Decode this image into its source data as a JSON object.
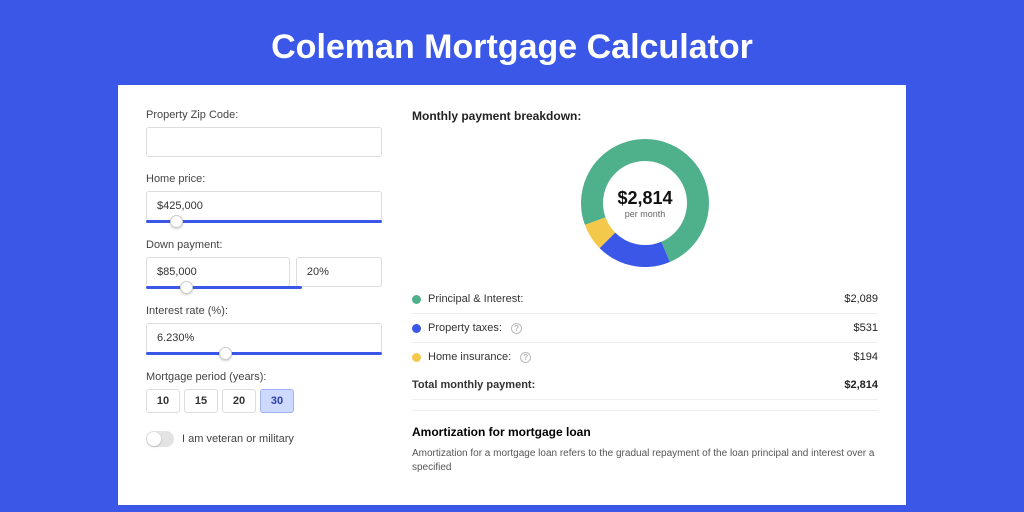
{
  "title": "Coleman Mortgage Calculator",
  "colors": {
    "page_bg": "#3a57e8",
    "card_bg": "#ffffff",
    "accent": "#3a57e8"
  },
  "form": {
    "zip": {
      "label": "Property Zip Code:",
      "value": ""
    },
    "home_price": {
      "label": "Home price:",
      "value": "$425,000",
      "slider_pct": 10
    },
    "down_payment": {
      "label": "Down payment:",
      "amount": "$85,000",
      "percent": "20%",
      "slider_pct": 22
    },
    "interest_rate": {
      "label": "Interest rate (%):",
      "value": "6.230%",
      "slider_pct": 31
    },
    "period": {
      "label": "Mortgage period (years):",
      "options": [
        "10",
        "15",
        "20",
        "30"
      ],
      "active": "30"
    },
    "veteran": {
      "label": "I am veteran or military",
      "checked": false
    }
  },
  "breakdown": {
    "title": "Monthly payment breakdown:",
    "center_amount": "$2,814",
    "center_sub": "per month",
    "donut": {
      "size": 128,
      "thickness": 22,
      "slices": [
        {
          "label": "Principal & Interest:",
          "value": "$2,089",
          "pct": 74.2,
          "color": "#4fb08c"
        },
        {
          "label": "Property taxes:",
          "value": "$531",
          "pct": 18.9,
          "color": "#3a57e8",
          "info": true
        },
        {
          "label": "Home insurance:",
          "value": "$194",
          "pct": 6.9,
          "color": "#f4c94b",
          "info": true
        }
      ]
    },
    "total": {
      "label": "Total monthly payment:",
      "value": "$2,814"
    }
  },
  "amortization": {
    "title": "Amortization for mortgage loan",
    "text": "Amortization for a mortgage loan refers to the gradual repayment of the loan principal and interest over a specified"
  }
}
